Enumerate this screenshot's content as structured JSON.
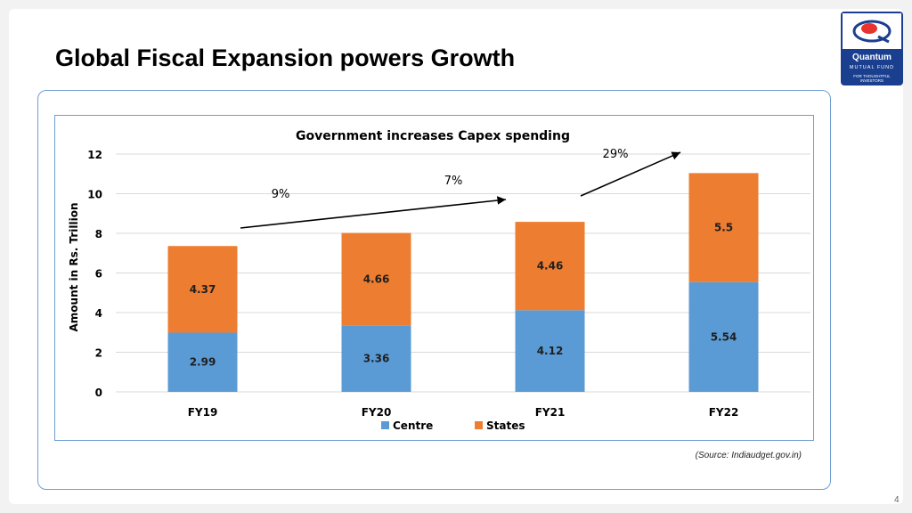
{
  "slide": {
    "title": "Global Fiscal Expansion powers Growth",
    "source": "(Source: Indiaudget.gov.in)",
    "page_number": "4"
  },
  "logo": {
    "name": "Quantum",
    "sub": "MUTUAL FUND",
    "tagline_1": "FOR THOUGHTFUL",
    "tagline_2": "INVESTORS",
    "colors": {
      "navy": "#1b3f8f",
      "red": "#e8342e"
    }
  },
  "chart_data": {
    "type": "bar",
    "stacked": true,
    "title": "Government increases Capex spending",
    "xlabel": "",
    "ylabel": "Amount in Rs. Trillion",
    "ylim": [
      0,
      12
    ],
    "yticks": [
      0,
      2,
      4,
      6,
      8,
      10,
      12
    ],
    "grid": true,
    "legend_position": "bottom",
    "categories": [
      "FY19",
      "FY20",
      "FY21",
      "FY22"
    ],
    "series": [
      {
        "name": "Centre",
        "values": [
          2.99,
          3.36,
          4.12,
          5.54
        ],
        "color": "#5b9bd5"
      },
      {
        "name": "States",
        "values": [
          4.37,
          4.66,
          4.46,
          5.5
        ],
        "color": "#ed7d31"
      }
    ],
    "annotations": [
      {
        "text": "9%"
      },
      {
        "text": "7%"
      },
      {
        "text": "29%"
      }
    ]
  }
}
